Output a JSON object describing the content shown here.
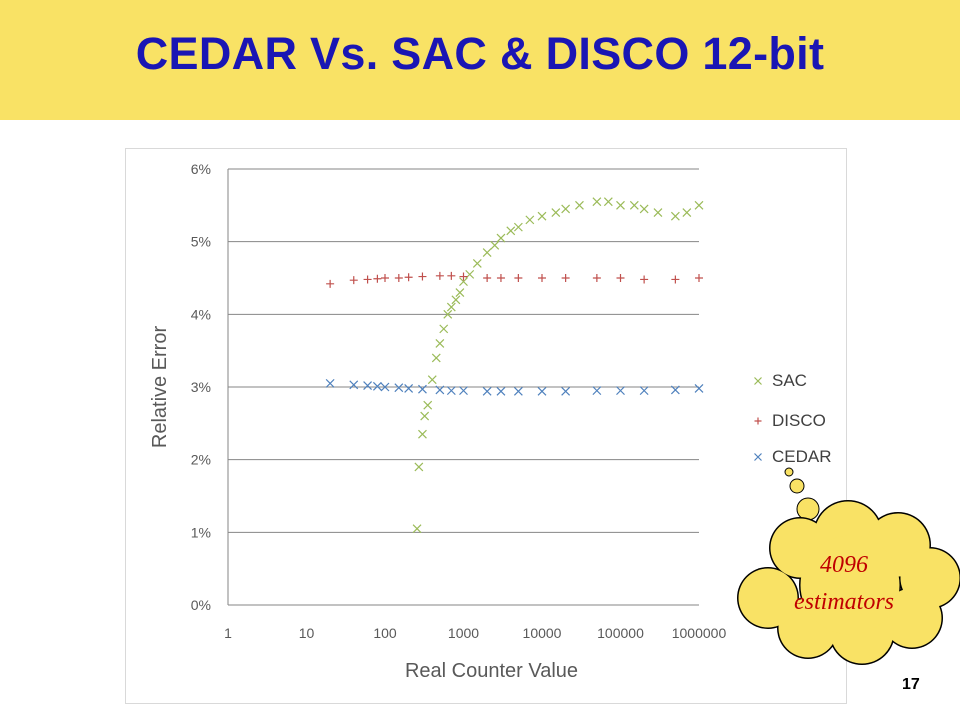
{
  "slide": {
    "title": "CEDAR Vs. SAC & DISCO 12-bit",
    "page_number": "17"
  },
  "callout": {
    "line1": "4096",
    "line2": "estimators"
  },
  "colors": {
    "title_bar": "#f9e265",
    "title_text": "#1a16b4",
    "SAC": "#9bbb59",
    "DISCO": "#c0504d",
    "CEDAR": "#4f81bd",
    "callout_fill": "#f9e265",
    "callout_text": "#c00000"
  },
  "chart_data": {
    "type": "scatter",
    "title": "",
    "xlabel": "Real Counter Value",
    "ylabel": "Relative Error",
    "x_scale": "log",
    "xlim": [
      1,
      1000000
    ],
    "ylim": [
      0,
      6
    ],
    "x_ticks": [
      "1",
      "10",
      "100",
      "1000",
      "10000",
      "100000",
      "1000000"
    ],
    "y_ticks": [
      "0%",
      "1%",
      "2%",
      "3%",
      "4%",
      "5%",
      "6%"
    ],
    "grid": "horizontal",
    "legend_placement": "right",
    "series": [
      {
        "name": "SAC",
        "marker": "x",
        "points": [
          [
            256,
            1.05
          ],
          [
            270,
            1.9
          ],
          [
            300,
            2.35
          ],
          [
            320,
            2.6
          ],
          [
            350,
            2.75
          ],
          [
            400,
            3.1
          ],
          [
            450,
            3.4
          ],
          [
            500,
            3.6
          ],
          [
            560,
            3.8
          ],
          [
            630,
            4.0
          ],
          [
            700,
            4.1
          ],
          [
            800,
            4.2
          ],
          [
            900,
            4.3
          ],
          [
            1000,
            4.45
          ],
          [
            1200,
            4.55
          ],
          [
            1500,
            4.7
          ],
          [
            2000,
            4.85
          ],
          [
            2500,
            4.95
          ],
          [
            3000,
            5.05
          ],
          [
            4000,
            5.15
          ],
          [
            5000,
            5.2
          ],
          [
            7000,
            5.3
          ],
          [
            10000,
            5.35
          ],
          [
            15000,
            5.4
          ],
          [
            20000,
            5.45
          ],
          [
            30000,
            5.5
          ],
          [
            50000,
            5.55
          ],
          [
            70000,
            5.55
          ],
          [
            100000,
            5.5
          ],
          [
            150000,
            5.5
          ],
          [
            200000,
            5.45
          ],
          [
            300000,
            5.4
          ],
          [
            500000,
            5.35
          ],
          [
            700000,
            5.4
          ],
          [
            1000000,
            5.5
          ]
        ]
      },
      {
        "name": "DISCO",
        "marker": "+",
        "points": [
          [
            20,
            4.42
          ],
          [
            40,
            4.47
          ],
          [
            60,
            4.48
          ],
          [
            80,
            4.49
          ],
          [
            100,
            4.5
          ],
          [
            150,
            4.5
          ],
          [
            200,
            4.51
          ],
          [
            300,
            4.52
          ],
          [
            500,
            4.53
          ],
          [
            700,
            4.53
          ],
          [
            1000,
            4.52
          ],
          [
            2000,
            4.5
          ],
          [
            3000,
            4.5
          ],
          [
            5000,
            4.5
          ],
          [
            10000,
            4.5
          ],
          [
            20000,
            4.5
          ],
          [
            50000,
            4.5
          ],
          [
            100000,
            4.5
          ],
          [
            200000,
            4.48
          ],
          [
            500000,
            4.48
          ],
          [
            1000000,
            4.5
          ]
        ]
      },
      {
        "name": "CEDAR",
        "marker": "x",
        "points": [
          [
            20,
            3.05
          ],
          [
            40,
            3.03
          ],
          [
            60,
            3.02
          ],
          [
            80,
            3.01
          ],
          [
            100,
            3.0
          ],
          [
            150,
            2.99
          ],
          [
            200,
            2.98
          ],
          [
            300,
            2.97
          ],
          [
            500,
            2.96
          ],
          [
            700,
            2.95
          ],
          [
            1000,
            2.95
          ],
          [
            2000,
            2.94
          ],
          [
            3000,
            2.94
          ],
          [
            5000,
            2.94
          ],
          [
            10000,
            2.94
          ],
          [
            20000,
            2.94
          ],
          [
            50000,
            2.95
          ],
          [
            100000,
            2.95
          ],
          [
            200000,
            2.95
          ],
          [
            500000,
            2.96
          ],
          [
            1000000,
            2.98
          ]
        ]
      }
    ]
  }
}
